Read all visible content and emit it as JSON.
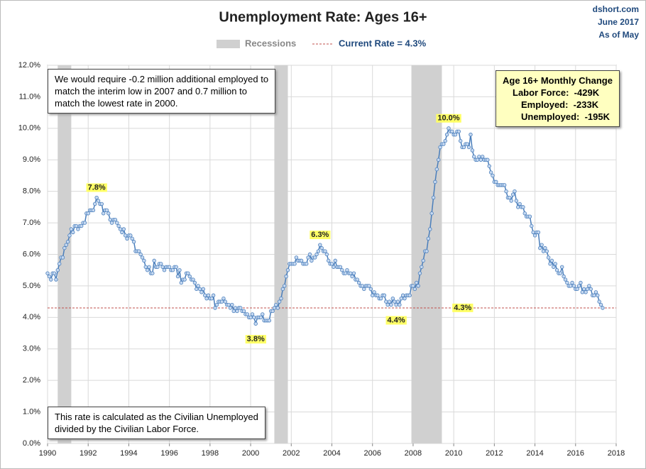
{
  "chart_data": {
    "type": "line",
    "title": "Unemployment Rate: Ages 16+",
    "source": [
      "dshort.com",
      "June 2017",
      "As of May"
    ],
    "recession_label": "Recessions",
    "recessions": [
      {
        "start": "1990-07",
        "end": "1991-03"
      },
      {
        "start": "2001-03",
        "end": "2001-11"
      },
      {
        "start": "2007-12",
        "end": "2009-06"
      }
    ],
    "current_rate": {
      "value": 4.3,
      "label": "4.3%",
      "legend": "Current Rate = 4.3%",
      "color": "#c0504d"
    },
    "note_top": [
      "We would require -0.2 million additional employed to",
      "match the interim low in 2007 and 0.7 million to",
      "match the lowest rate in 2000."
    ],
    "note_bottom": [
      "This rate is calculated as the Civilian Unemployed",
      "divided by the Civilian Labor Force."
    ],
    "change_box": {
      "title": "Age 16+ Monthly Change",
      "lines": [
        "Labor Force:  -429K",
        "Employed:  -233K",
        "Unemployed:  -195K"
      ]
    },
    "annotations": [
      {
        "x": "1992-06",
        "value": 7.8,
        "label": "7.8%"
      },
      {
        "x": "2000-04",
        "value": 3.8,
        "label": "3.8%"
      },
      {
        "x": "2003-06",
        "value": 6.3,
        "label": "6.3%"
      },
      {
        "x": "2007-03",
        "value": 4.4,
        "label": "4.4%"
      },
      {
        "x": "2009-10",
        "value": 10.0,
        "label": "10.0%"
      }
    ],
    "color": "#4a7ebb",
    "xlim": [
      1990,
      2018
    ],
    "xticks": [
      1990,
      1992,
      1994,
      1996,
      1998,
      2000,
      2002,
      2004,
      2006,
      2008,
      2010,
      2012,
      2014,
      2016,
      2018
    ],
    "ylim": [
      0,
      12
    ],
    "yticks": [
      {
        "value": 0,
        "label": "0.0%"
      },
      {
        "value": 1,
        "label": "1.0%"
      },
      {
        "value": 2,
        "label": "2.0%"
      },
      {
        "value": 3,
        "label": "3.0%"
      },
      {
        "value": 4,
        "label": "4.0%"
      },
      {
        "value": 5,
        "label": "5.0%"
      },
      {
        "value": 6,
        "label": "6.0%"
      },
      {
        "value": 7,
        "label": "7.0%"
      },
      {
        "value": 8,
        "label": "8.0%"
      },
      {
        "value": 9,
        "label": "9.0%"
      },
      {
        "value": 10,
        "label": "10.0%"
      },
      {
        "value": 11,
        "label": "11.0%"
      },
      {
        "value": 12,
        "label": "12.0%"
      }
    ],
    "grid": true,
    "x": [
      "1990-01",
      "1990-02",
      "1990-03",
      "1990-04",
      "1990-05",
      "1990-06",
      "1990-07",
      "1990-08",
      "1990-09",
      "1990-10",
      "1990-11",
      "1990-12",
      "1991-01",
      "1991-02",
      "1991-03",
      "1991-04",
      "1991-05",
      "1991-06",
      "1991-07",
      "1991-08",
      "1991-09",
      "1991-10",
      "1991-11",
      "1991-12",
      "1992-01",
      "1992-02",
      "1992-03",
      "1992-04",
      "1992-05",
      "1992-06",
      "1992-07",
      "1992-08",
      "1992-09",
      "1992-10",
      "1992-11",
      "1992-12",
      "1993-01",
      "1993-02",
      "1993-03",
      "1993-04",
      "1993-05",
      "1993-06",
      "1993-07",
      "1993-08",
      "1993-09",
      "1993-10",
      "1993-11",
      "1993-12",
      "1994-01",
      "1994-02",
      "1994-03",
      "1994-04",
      "1994-05",
      "1994-06",
      "1994-07",
      "1994-08",
      "1994-09",
      "1994-10",
      "1994-11",
      "1994-12",
      "1995-01",
      "1995-02",
      "1995-03",
      "1995-04",
      "1995-05",
      "1995-06",
      "1995-07",
      "1995-08",
      "1995-09",
      "1995-10",
      "1995-11",
      "1995-12",
      "1996-01",
      "1996-02",
      "1996-03",
      "1996-04",
      "1996-05",
      "1996-06",
      "1996-07",
      "1996-08",
      "1996-09",
      "1996-10",
      "1996-11",
      "1996-12",
      "1997-01",
      "1997-02",
      "1997-03",
      "1997-04",
      "1997-05",
      "1997-06",
      "1997-07",
      "1997-08",
      "1997-09",
      "1997-10",
      "1997-11",
      "1997-12",
      "1998-01",
      "1998-02",
      "1998-03",
      "1998-04",
      "1998-05",
      "1998-06",
      "1998-07",
      "1998-08",
      "1998-09",
      "1998-10",
      "1998-11",
      "1998-12",
      "1999-01",
      "1999-02",
      "1999-03",
      "1999-04",
      "1999-05",
      "1999-06",
      "1999-07",
      "1999-08",
      "1999-09",
      "1999-10",
      "1999-11",
      "1999-12",
      "2000-01",
      "2000-02",
      "2000-03",
      "2000-04",
      "2000-05",
      "2000-06",
      "2000-07",
      "2000-08",
      "2000-09",
      "2000-10",
      "2000-11",
      "2000-12",
      "2001-01",
      "2001-02",
      "2001-03",
      "2001-04",
      "2001-05",
      "2001-06",
      "2001-07",
      "2001-08",
      "2001-09",
      "2001-10",
      "2001-11",
      "2001-12",
      "2002-01",
      "2002-02",
      "2002-03",
      "2002-04",
      "2002-05",
      "2002-06",
      "2002-07",
      "2002-08",
      "2002-09",
      "2002-10",
      "2002-11",
      "2002-12",
      "2003-01",
      "2003-02",
      "2003-03",
      "2003-04",
      "2003-05",
      "2003-06",
      "2003-07",
      "2003-08",
      "2003-09",
      "2003-10",
      "2003-11",
      "2003-12",
      "2004-01",
      "2004-02",
      "2004-03",
      "2004-04",
      "2004-05",
      "2004-06",
      "2004-07",
      "2004-08",
      "2004-09",
      "2004-10",
      "2004-11",
      "2004-12",
      "2005-01",
      "2005-02",
      "2005-03",
      "2005-04",
      "2005-05",
      "2005-06",
      "2005-07",
      "2005-08",
      "2005-09",
      "2005-10",
      "2005-11",
      "2005-12",
      "2006-01",
      "2006-02",
      "2006-03",
      "2006-04",
      "2006-05",
      "2006-06",
      "2006-07",
      "2006-08",
      "2006-09",
      "2006-10",
      "2006-11",
      "2006-12",
      "2007-01",
      "2007-02",
      "2007-03",
      "2007-04",
      "2007-05",
      "2007-06",
      "2007-07",
      "2007-08",
      "2007-09",
      "2007-10",
      "2007-11",
      "2007-12",
      "2008-01",
      "2008-02",
      "2008-03",
      "2008-04",
      "2008-05",
      "2008-06",
      "2008-07",
      "2008-08",
      "2008-09",
      "2008-10",
      "2008-11",
      "2008-12",
      "2009-01",
      "2009-02",
      "2009-03",
      "2009-04",
      "2009-05",
      "2009-06",
      "2009-07",
      "2009-08",
      "2009-09",
      "2009-10",
      "2009-11",
      "2009-12",
      "2010-01",
      "2010-02",
      "2010-03",
      "2010-04",
      "2010-05",
      "2010-06",
      "2010-07",
      "2010-08",
      "2010-09",
      "2010-10",
      "2010-11",
      "2010-12",
      "2011-01",
      "2011-02",
      "2011-03",
      "2011-04",
      "2011-05",
      "2011-06",
      "2011-07",
      "2011-08",
      "2011-09",
      "2011-10",
      "2011-11",
      "2011-12",
      "2012-01",
      "2012-02",
      "2012-03",
      "2012-04",
      "2012-05",
      "2012-06",
      "2012-07",
      "2012-08",
      "2012-09",
      "2012-10",
      "2012-11",
      "2012-12",
      "2013-01",
      "2013-02",
      "2013-03",
      "2013-04",
      "2013-05",
      "2013-06",
      "2013-07",
      "2013-08",
      "2013-09",
      "2013-10",
      "2013-11",
      "2013-12",
      "2014-01",
      "2014-02",
      "2014-03",
      "2014-04",
      "2014-05",
      "2014-06",
      "2014-07",
      "2014-08",
      "2014-09",
      "2014-10",
      "2014-11",
      "2014-12",
      "2015-01",
      "2015-02",
      "2015-03",
      "2015-04",
      "2015-05",
      "2015-06",
      "2015-07",
      "2015-08",
      "2015-09",
      "2015-10",
      "2015-11",
      "2015-12",
      "2016-01",
      "2016-02",
      "2016-03",
      "2016-04",
      "2016-05",
      "2016-06",
      "2016-07",
      "2016-08",
      "2016-09",
      "2016-10",
      "2016-11",
      "2016-12",
      "2017-01",
      "2017-02",
      "2017-03",
      "2017-04",
      "2017-05"
    ],
    "values": [
      5.4,
      5.3,
      5.2,
      5.4,
      5.4,
      5.2,
      5.5,
      5.7,
      5.9,
      5.9,
      6.2,
      6.3,
      6.4,
      6.6,
      6.8,
      6.7,
      6.9,
      6.9,
      6.8,
      6.9,
      6.9,
      7.0,
      7.0,
      7.3,
      7.3,
      7.4,
      7.4,
      7.4,
      7.6,
      7.8,
      7.7,
      7.6,
      7.6,
      7.3,
      7.4,
      7.4,
      7.3,
      7.1,
      7.0,
      7.1,
      7.1,
      7.0,
      6.9,
      6.8,
      6.7,
      6.8,
      6.6,
      6.5,
      6.6,
      6.6,
      6.5,
      6.4,
      6.1,
      6.1,
      6.1,
      6.0,
      5.9,
      5.8,
      5.6,
      5.5,
      5.6,
      5.4,
      5.4,
      5.8,
      5.6,
      5.6,
      5.7,
      5.7,
      5.6,
      5.5,
      5.6,
      5.6,
      5.6,
      5.5,
      5.5,
      5.6,
      5.6,
      5.3,
      5.5,
      5.1,
      5.2,
      5.2,
      5.4,
      5.4,
      5.3,
      5.2,
      5.2,
      5.1,
      4.9,
      5.0,
      4.9,
      4.8,
      4.9,
      4.7,
      4.6,
      4.7,
      4.6,
      4.6,
      4.7,
      4.3,
      4.4,
      4.5,
      4.5,
      4.5,
      4.6,
      4.5,
      4.4,
      4.4,
      4.3,
      4.4,
      4.2,
      4.3,
      4.2,
      4.3,
      4.3,
      4.2,
      4.2,
      4.1,
      4.1,
      4.0,
      4.0,
      4.1,
      4.0,
      3.8,
      4.0,
      4.0,
      4.0,
      4.1,
      3.9,
      3.9,
      3.9,
      3.9,
      4.2,
      4.2,
      4.3,
      4.4,
      4.3,
      4.5,
      4.6,
      4.9,
      5.0,
      5.3,
      5.5,
      5.7,
      5.7,
      5.7,
      5.7,
      5.9,
      5.8,
      5.8,
      5.8,
      5.7,
      5.7,
      5.7,
      5.9,
      6.0,
      5.8,
      5.9,
      5.9,
      6.0,
      6.1,
      6.3,
      6.2,
      6.1,
      6.1,
      6.0,
      5.8,
      5.7,
      5.7,
      5.6,
      5.8,
      5.6,
      5.6,
      5.6,
      5.5,
      5.4,
      5.4,
      5.5,
      5.4,
      5.4,
      5.3,
      5.4,
      5.2,
      5.2,
      5.1,
      5.0,
      5.0,
      4.9,
      5.0,
      5.0,
      5.0,
      4.9,
      4.7,
      4.8,
      4.7,
      4.7,
      4.6,
      4.6,
      4.7,
      4.7,
      4.5,
      4.4,
      4.5,
      4.4,
      4.6,
      4.5,
      4.4,
      4.5,
      4.4,
      4.6,
      4.7,
      4.6,
      4.7,
      4.7,
      4.7,
      5.0,
      5.0,
      4.9,
      5.1,
      5.0,
      5.4,
      5.6,
      5.8,
      6.1,
      6.1,
      6.5,
      6.8,
      7.3,
      7.8,
      8.3,
      8.7,
      9.0,
      9.4,
      9.5,
      9.5,
      9.6,
      9.8,
      10.0,
      9.9,
      9.9,
      9.8,
      9.8,
      9.9,
      9.9,
      9.6,
      9.4,
      9.4,
      9.5,
      9.5,
      9.4,
      9.8,
      9.3,
      9.1,
      9.0,
      9.0,
      9.1,
      9.0,
      9.1,
      9.0,
      9.0,
      9.0,
      8.8,
      8.6,
      8.5,
      8.3,
      8.3,
      8.2,
      8.2,
      8.2,
      8.2,
      8.2,
      8.0,
      7.8,
      7.8,
      7.7,
      7.9,
      8.0,
      7.7,
      7.5,
      7.6,
      7.5,
      7.5,
      7.3,
      7.2,
      7.2,
      7.2,
      6.9,
      6.7,
      6.6,
      6.7,
      6.7,
      6.2,
      6.3,
      6.1,
      6.2,
      6.1,
      5.9,
      5.7,
      5.8,
      5.6,
      5.7,
      5.5,
      5.4,
      5.4,
      5.6,
      5.3,
      5.2,
      5.1,
      5.0,
      5.0,
      5.1,
      5.0,
      4.9,
      4.9,
      5.0,
      5.1,
      4.8,
      4.9,
      4.8,
      4.9,
      5.0,
      4.9,
      4.7,
      4.7,
      4.8,
      4.7,
      4.5,
      4.4,
      4.3
    ]
  }
}
